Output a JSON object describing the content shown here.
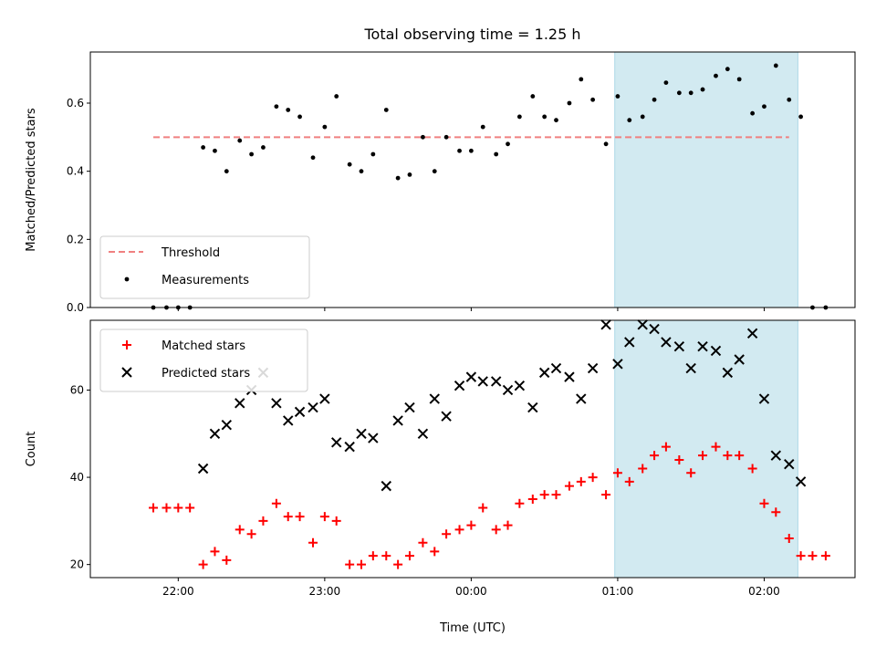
{
  "figure": {
    "title": "Total observing time = 1.25 h",
    "xlabel": "Time (UTC)",
    "xticks": [
      {
        "label": "22:00",
        "hour": 22.0
      },
      {
        "label": "23:00",
        "hour": 23.0
      },
      {
        "label": "00:00",
        "hour": 24.0
      },
      {
        "label": "01:00",
        "hour": 25.0
      },
      {
        "label": "02:00",
        "hour": 26.0
      }
    ],
    "xlim": [
      21.4,
      26.62
    ],
    "shaded_window": {
      "start": "00:59",
      "end": "02:14",
      "start_hour": 24.98,
      "end_hour": 26.23,
      "color": "#add8e6"
    }
  },
  "chart_data": [
    {
      "type": "scatter",
      "ylabel": "Matched/Predicted stars",
      "ylim": [
        0,
        0.75
      ],
      "yticks": [
        0.0,
        0.2,
        0.4,
        0.6
      ],
      "legend": {
        "placement": "lower-left",
        "entries": [
          {
            "label": "Threshold",
            "style": "dashed-line",
            "color": "#f08080"
          },
          {
            "label": "Measurements",
            "style": "dot",
            "color": "#000000"
          }
        ]
      },
      "threshold": {
        "name": "Threshold",
        "value": 0.5,
        "x_start": 21.83,
        "x_end": 26.17,
        "color": "#f08080"
      },
      "series": [
        {
          "name": "Measurements",
          "color": "#000000",
          "marker": "dot",
          "points": [
            [
              21.83,
              0.0
            ],
            [
              21.92,
              0.0
            ],
            [
              22.0,
              0.0
            ],
            [
              22.08,
              0.0
            ],
            [
              22.17,
              0.47
            ],
            [
              22.25,
              0.46
            ],
            [
              22.33,
              0.4
            ],
            [
              22.42,
              0.49
            ],
            [
              22.5,
              0.45
            ],
            [
              22.58,
              0.47
            ],
            [
              22.67,
              0.59
            ],
            [
              22.75,
              0.58
            ],
            [
              22.83,
              0.56
            ],
            [
              22.92,
              0.44
            ],
            [
              23.0,
              0.53
            ],
            [
              23.08,
              0.62
            ],
            [
              23.17,
              0.42
            ],
            [
              23.25,
              0.4
            ],
            [
              23.33,
              0.45
            ],
            [
              23.42,
              0.58
            ],
            [
              23.5,
              0.38
            ],
            [
              23.58,
              0.39
            ],
            [
              23.67,
              0.5
            ],
            [
              23.75,
              0.4
            ],
            [
              23.83,
              0.5
            ],
            [
              23.92,
              0.46
            ],
            [
              24.0,
              0.46
            ],
            [
              24.08,
              0.53
            ],
            [
              24.17,
              0.45
            ],
            [
              24.25,
              0.48
            ],
            [
              24.33,
              0.56
            ],
            [
              24.42,
              0.62
            ],
            [
              24.5,
              0.56
            ],
            [
              24.58,
              0.55
            ],
            [
              24.67,
              0.6
            ],
            [
              24.75,
              0.67
            ],
            [
              24.83,
              0.61
            ],
            [
              24.92,
              0.48
            ],
            [
              25.0,
              0.62
            ],
            [
              25.08,
              0.55
            ],
            [
              25.17,
              0.56
            ],
            [
              25.25,
              0.61
            ],
            [
              25.33,
              0.66
            ],
            [
              25.42,
              0.63
            ],
            [
              25.5,
              0.63
            ],
            [
              25.58,
              0.64
            ],
            [
              25.67,
              0.68
            ],
            [
              25.75,
              0.7
            ],
            [
              25.83,
              0.67
            ],
            [
              25.92,
              0.57
            ],
            [
              26.0,
              0.59
            ],
            [
              26.08,
              0.71
            ],
            [
              26.17,
              0.61
            ],
            [
              26.25,
              0.56
            ],
            [
              26.33,
              0.0
            ],
            [
              26.42,
              0.0
            ]
          ]
        }
      ]
    },
    {
      "type": "scatter",
      "ylabel": "Count",
      "ylim": [
        17,
        76
      ],
      "yticks": [
        20,
        40,
        60
      ],
      "legend": {
        "placement": "upper-left",
        "entries": [
          {
            "label": "Matched stars",
            "style": "plus",
            "color": "#ff0000"
          },
          {
            "label": "Predicted stars",
            "style": "cross",
            "color": "#000000"
          }
        ]
      },
      "series": [
        {
          "name": "Matched stars",
          "color": "#ff0000",
          "marker": "plus",
          "points": [
            [
              21.83,
              33
            ],
            [
              21.92,
              33
            ],
            [
              22.0,
              33
            ],
            [
              22.08,
              33
            ],
            [
              22.17,
              20
            ],
            [
              22.25,
              23
            ],
            [
              22.33,
              21
            ],
            [
              22.42,
              28
            ],
            [
              22.5,
              27
            ],
            [
              22.58,
              30
            ],
            [
              22.67,
              34
            ],
            [
              22.75,
              31
            ],
            [
              22.83,
              31
            ],
            [
              22.92,
              25
            ],
            [
              23.0,
              31
            ],
            [
              23.08,
              30
            ],
            [
              23.17,
              20
            ],
            [
              23.25,
              20
            ],
            [
              23.33,
              22
            ],
            [
              23.42,
              22
            ],
            [
              23.5,
              20
            ],
            [
              23.58,
              22
            ],
            [
              23.67,
              25
            ],
            [
              23.75,
              23
            ],
            [
              23.83,
              27
            ],
            [
              23.92,
              28
            ],
            [
              24.0,
              29
            ],
            [
              24.08,
              33
            ],
            [
              24.17,
              28
            ],
            [
              24.25,
              29
            ],
            [
              24.33,
              34
            ],
            [
              24.42,
              35
            ],
            [
              24.5,
              36
            ],
            [
              24.58,
              36
            ],
            [
              24.67,
              38
            ],
            [
              24.75,
              39
            ],
            [
              24.83,
              40
            ],
            [
              24.92,
              36
            ],
            [
              25.0,
              41
            ],
            [
              25.08,
              39
            ],
            [
              25.17,
              42
            ],
            [
              25.25,
              45
            ],
            [
              25.33,
              47
            ],
            [
              25.42,
              44
            ],
            [
              25.5,
              41
            ],
            [
              25.58,
              45
            ],
            [
              25.67,
              47
            ],
            [
              25.75,
              45
            ],
            [
              25.83,
              45
            ],
            [
              25.92,
              42
            ],
            [
              26.0,
              34
            ],
            [
              26.08,
              32
            ],
            [
              26.17,
              26
            ],
            [
              26.25,
              22
            ],
            [
              26.33,
              22
            ],
            [
              26.42,
              22
            ]
          ]
        },
        {
          "name": "Predicted stars",
          "color": "#000000",
          "marker": "cross",
          "points": [
            [
              22.17,
              42
            ],
            [
              22.25,
              50
            ],
            [
              22.33,
              52
            ],
            [
              22.42,
              57
            ],
            [
              22.5,
              60
            ],
            [
              22.58,
              64
            ],
            [
              22.67,
              57
            ],
            [
              22.75,
              53
            ],
            [
              22.83,
              55
            ],
            [
              22.92,
              56
            ],
            [
              23.0,
              58
            ],
            [
              23.08,
              48
            ],
            [
              23.17,
              47
            ],
            [
              23.25,
              50
            ],
            [
              23.33,
              49
            ],
            [
              23.42,
              38
            ],
            [
              23.5,
              53
            ],
            [
              23.58,
              56
            ],
            [
              23.67,
              50
            ],
            [
              23.75,
              58
            ],
            [
              23.83,
              54
            ],
            [
              23.92,
              61
            ],
            [
              24.0,
              63
            ],
            [
              24.08,
              62
            ],
            [
              24.17,
              62
            ],
            [
              24.25,
              60
            ],
            [
              24.33,
              61
            ],
            [
              24.42,
              56
            ],
            [
              24.5,
              64
            ],
            [
              24.58,
              65
            ],
            [
              24.67,
              63
            ],
            [
              24.75,
              58
            ],
            [
              24.83,
              65
            ],
            [
              24.92,
              75
            ],
            [
              25.0,
              66
            ],
            [
              25.08,
              71
            ],
            [
              25.17,
              75
            ],
            [
              25.25,
              74
            ],
            [
              25.33,
              71
            ],
            [
              25.42,
              70
            ],
            [
              25.5,
              65
            ],
            [
              25.58,
              70
            ],
            [
              25.67,
              69
            ],
            [
              25.75,
              64
            ],
            [
              25.83,
              67
            ],
            [
              25.92,
              73
            ],
            [
              26.0,
              58
            ],
            [
              26.08,
              45
            ],
            [
              26.17,
              43
            ],
            [
              26.25,
              39
            ]
          ]
        }
      ]
    }
  ]
}
